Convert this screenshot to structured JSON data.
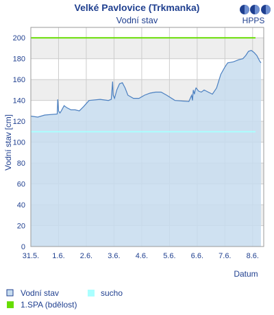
{
  "header": {
    "title": "Velké Pavlovice (Trkmanka)",
    "subtitle": "Vodní stav"
  },
  "logo": {
    "text": "HPPS",
    "icon": "hpps-logo-icon"
  },
  "colors": {
    "text": "#1f3f8f",
    "area_fill": "#c7dcef",
    "area_line": "#4a7fc0",
    "spa1": "#66dd00",
    "sucho": "#aaffff",
    "band": "#eeeeee",
    "grid": "#cccccc"
  },
  "chart_data": {
    "type": "area",
    "title": "Velké Pavlovice (Trkmanka)",
    "subtitle": "Vodní stav",
    "xlabel": "Datum",
    "ylabel": "Vodní stav [cm]",
    "ylim": [
      0,
      210
    ],
    "yticks": [
      "0",
      "20",
      "40",
      "60",
      "80",
      "100",
      "120",
      "140",
      "160",
      "180",
      "200"
    ],
    "xlim": [
      0,
      8.4
    ],
    "xtick_positions": [
      0,
      1,
      2,
      3,
      4,
      5,
      6,
      7,
      8
    ],
    "xtick_labels": [
      "31.5.",
      "1.6.",
      "2.6.",
      "3.6.",
      "4.6.",
      "5.6.",
      "6.6.",
      "7.6.",
      "8.6."
    ],
    "x_unit": "days",
    "grid": true,
    "series": [
      {
        "name": "Vodní stav",
        "x": [
          0.0,
          0.25,
          0.5,
          0.95,
          0.97,
          1.0,
          1.05,
          1.1,
          1.2,
          1.3,
          1.45,
          1.6,
          1.75,
          1.9,
          2.1,
          2.5,
          2.8,
          2.9,
          2.95,
          2.97,
          3.02,
          3.1,
          3.2,
          3.3,
          3.4,
          3.5,
          3.7,
          3.9,
          4.1,
          4.3,
          4.5,
          4.7,
          4.9,
          5.2,
          5.7,
          5.8,
          5.83,
          5.86,
          5.9,
          5.93,
          5.96,
          6.05,
          6.15,
          6.25,
          6.4,
          6.55,
          6.7,
          6.85,
          7.0,
          7.1,
          7.3,
          7.5,
          7.65,
          7.75,
          7.85,
          7.95,
          8.05,
          8.15,
          8.25,
          8.3
        ],
        "y": [
          125,
          124,
          126,
          127,
          141,
          130,
          128,
          130,
          135,
          133,
          131,
          131,
          130,
          134,
          140,
          141,
          140,
          141,
          158,
          145,
          142,
          150,
          156,
          157,
          152,
          145,
          142,
          142,
          145,
          147,
          148,
          148,
          145,
          140,
          139,
          145,
          140,
          150,
          146,
          150,
          152,
          149,
          148,
          150,
          148,
          146,
          152,
          165,
          172,
          176,
          177,
          179,
          180,
          183,
          187,
          188,
          186,
          183,
          178,
          176
        ]
      }
    ],
    "thresholds": [
      {
        "name": "1.SPA (bdělost)",
        "value": 200
      },
      {
        "name": "sucho",
        "value": 110
      }
    ],
    "legend": {
      "position": "bottom",
      "items": [
        "Vodní stav",
        "sucho",
        "1.SPA (bdělost)"
      ]
    }
  }
}
